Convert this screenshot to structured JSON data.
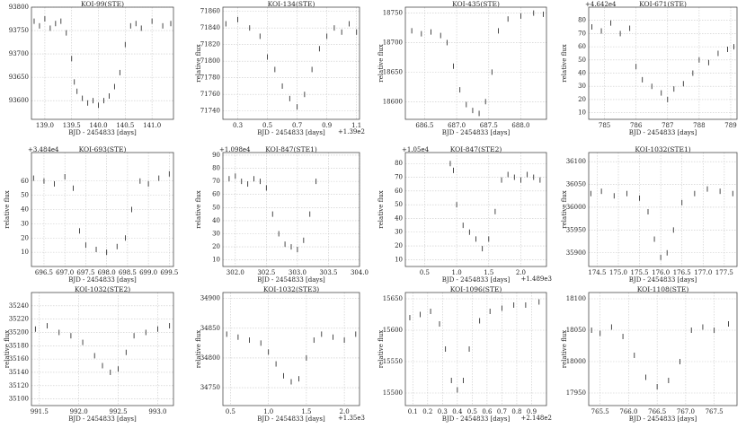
{
  "chart_data": [
    {
      "type": "scatter",
      "title": "KOI-99(STE)",
      "xlabel": "BJD - 2454833 [days]",
      "xlim": [
        138.75,
        141.4
      ],
      "ylim": [
        93560,
        93800
      ],
      "xticks": [
        {
          "value": 139,
          "label": "139.0"
        },
        139.5,
        {
          "value": 140,
          "label": "140.0"
        },
        140.5,
        {
          "value": 141,
          "label": "141.0"
        }
      ],
      "yticks": [
        93600,
        93650,
        93700,
        93750,
        93800
      ],
      "x": [
        138.8,
        138.9,
        139.0,
        139.1,
        139.2,
        139.3,
        139.4,
        139.5,
        139.55,
        139.6,
        139.7,
        139.8,
        139.9,
        140.0,
        140.1,
        140.2,
        140.3,
        140.4,
        140.5,
        140.6,
        140.7,
        140.8,
        141.0,
        141.2,
        141.35
      ],
      "values": [
        93770,
        93760,
        93775,
        93755,
        93765,
        93770,
        93745,
        93690,
        93640,
        93620,
        93605,
        93595,
        93600,
        93590,
        93600,
        93610,
        93630,
        93660,
        93720,
        93760,
        93765,
        93755,
        93770,
        93760,
        93765
      ]
    },
    {
      "type": "scatter",
      "title": "KOI-134(STE)",
      "xlabel": "BJD - 2454833 [days]",
      "ylabel": "relative flux",
      "x_offset": "+1.39e2",
      "xlim": [
        0.2,
        1.12
      ],
      "ylim": [
        71730,
        71865
      ],
      "xticks": [
        0.3,
        0.5,
        0.7,
        0.9,
        1.1
      ],
      "yticks": [
        71740,
        71760,
        71780,
        71800,
        71820,
        71840,
        71860
      ],
      "x": [
        0.22,
        0.3,
        0.38,
        0.45,
        0.5,
        0.55,
        0.6,
        0.65,
        0.7,
        0.75,
        0.8,
        0.85,
        0.9,
        0.95,
        1.0,
        1.05,
        1.1
      ],
      "values": [
        71845,
        71850,
        71840,
        71830,
        71805,
        71790,
        71770,
        71755,
        71745,
        71760,
        71790,
        71815,
        71830,
        71840,
        71835,
        71845,
        71835
      ]
    },
    {
      "type": "scatter",
      "title": "KOI-435(STE)",
      "xlabel": "BJD - 2454833 [days]",
      "ylabel": "relative flux",
      "xlim": [
        686.2,
        688.4
      ],
      "ylim": [
        18570,
        18760
      ],
      "xticks": [
        686.5,
        {
          "value": 687,
          "label": "687.0"
        },
        687.5,
        {
          "value": 688,
          "label": "688.0"
        }
      ],
      "yticks": [
        18600,
        18650,
        18700,
        18750
      ],
      "x": [
        686.3,
        686.45,
        686.6,
        686.75,
        686.85,
        686.95,
        687.05,
        687.15,
        687.25,
        687.35,
        687.45,
        687.55,
        687.65,
        687.8,
        688.0,
        688.2,
        688.35
      ],
      "values": [
        18720,
        18715,
        18718,
        18712,
        18700,
        18660,
        18620,
        18595,
        18585,
        18580,
        18600,
        18650,
        18720,
        18740,
        18745,
        18750,
        18748
      ]
    },
    {
      "type": "scatter",
      "title": "KOI-671(STE)",
      "xlabel": "BJD - 2454833 [days]",
      "ylabel": "relative flux",
      "y_offset": "+4.642e4",
      "xlim": [
        784.5,
        789.2
      ],
      "ylim": [
        5,
        90
      ],
      "xticks": [
        785,
        786,
        787,
        788,
        789
      ],
      "yticks": [
        10,
        20,
        30,
        40,
        50,
        60,
        70,
        80
      ],
      "x": [
        784.6,
        784.9,
        785.2,
        785.5,
        785.8,
        786.0,
        786.2,
        786.5,
        786.8,
        787.0,
        787.2,
        787.5,
        787.8,
        788.0,
        788.3,
        788.6,
        788.9,
        789.1
      ],
      "values": [
        75,
        72,
        78,
        70,
        74,
        45,
        35,
        30,
        25,
        20,
        28,
        32,
        40,
        50,
        48,
        55,
        58,
        60
      ]
    },
    {
      "type": "scatter",
      "title": "KOI-693(STE)",
      "xlabel": "BJD - 2454833 [days]",
      "ylabel": "relative flux",
      "y_offset": "+3.484e4",
      "xlim": [
        696.2,
        699.6
      ],
      "ylim": [
        0,
        80
      ],
      "xticks": [
        696.5,
        {
          "value": 697,
          "label": "697.0"
        },
        697.5,
        {
          "value": 698,
          "label": "698.0"
        },
        698.5,
        {
          "value": 699,
          "label": "699.0"
        },
        699.5
      ],
      "yticks": [
        10,
        20,
        30,
        40,
        50,
        60
      ],
      "x": [
        696.25,
        696.5,
        696.75,
        697.0,
        697.2,
        697.35,
        697.5,
        697.75,
        698.0,
        698.25,
        698.45,
        698.6,
        698.8,
        699.0,
        699.25,
        699.5
      ],
      "values": [
        62,
        60,
        58,
        63,
        55,
        25,
        15,
        12,
        10,
        14,
        20,
        40,
        60,
        58,
        62,
        65
      ]
    },
    {
      "type": "scatter",
      "title": "KOI-847(STE1)",
      "xlabel": "BJD - 2454833 [days]",
      "ylabel": "relative flux",
      "y_offset": "+1.098e4",
      "xlim": [
        301.8,
        304.0
      ],
      "ylim": [
        5,
        92
      ],
      "xticks": [
        {
          "value": 302,
          "label": "302.0"
        },
        302.5,
        {
          "value": 303,
          "label": "303.0"
        },
        303.5,
        {
          "value": 304,
          "label": "304.0"
        }
      ],
      "yticks": [
        10,
        20,
        30,
        40,
        50,
        60,
        70,
        80,
        90
      ],
      "x": [
        301.9,
        302.0,
        302.1,
        302.2,
        302.3,
        302.4,
        302.5,
        302.6,
        302.7,
        302.8,
        302.9,
        303.0,
        303.1,
        303.2,
        303.3
      ],
      "values": [
        72,
        74,
        70,
        68,
        72,
        70,
        65,
        45,
        30,
        22,
        20,
        18,
        25,
        45,
        70
      ]
    },
    {
      "type": "scatter",
      "title": "KOI-847(STE2)",
      "xlabel": "BJD - 2454833 [days]",
      "ylabel": "relative flux",
      "y_offset": "+1.05e4",
      "x_offset": "+1.489e3",
      "xlim": [
        0.2,
        2.4
      ],
      "ylim": [
        5,
        88
      ],
      "xticks": [
        0.5,
        {
          "value": 1,
          "label": "1.0"
        },
        1.5,
        {
          "value": 2,
          "label": "2.0"
        }
      ],
      "yticks": [
        10,
        20,
        30,
        40,
        50,
        60,
        70,
        80
      ],
      "x": [
        0.9,
        0.95,
        1.0,
        1.1,
        1.2,
        1.3,
        1.4,
        1.5,
        1.6,
        1.7,
        1.8,
        1.9,
        2.0,
        2.1,
        2.2,
        2.3
      ],
      "values": [
        80,
        75,
        50,
        35,
        30,
        25,
        18,
        25,
        45,
        68,
        72,
        70,
        68,
        72,
        70,
        68
      ]
    },
    {
      "type": "scatter",
      "title": "KOI-1032(STE1)",
      "xlabel": "BJD - 2454833 [days]",
      "ylabel": "relative flux",
      "xlim": [
        174.3,
        177.8
      ],
      "ylim": [
        35870,
        36120
      ],
      "xticks": [
        174.5,
        {
          "value": 175,
          "label": "175.0"
        },
        175.5,
        {
          "value": 176,
          "label": "176.0"
        },
        176.5,
        {
          "value": 177,
          "label": "177.0"
        },
        177.5
      ],
      "yticks": [
        35900,
        35950,
        36000,
        36050,
        36100
      ],
      "x": [
        174.35,
        174.6,
        174.9,
        175.2,
        175.5,
        175.7,
        175.85,
        176.0,
        176.15,
        176.3,
        176.5,
        176.8,
        177.1,
        177.4,
        177.7
      ],
      "values": [
        36030,
        36035,
        36025,
        36030,
        36020,
        35990,
        35930,
        35890,
        35900,
        35950,
        36010,
        36030,
        36040,
        36035,
        36030
      ]
    },
    {
      "type": "scatter",
      "title": "KOI-1032(STE2)",
      "xlabel": "BJD - 2454833 [days]",
      "ylabel": "relative flux",
      "xlim": [
        991.4,
        993.2
      ],
      "ylim": [
        35090,
        35260
      ],
      "xticks": [
        991.5,
        {
          "value": 992,
          "label": "992.0"
        },
        992.5,
        {
          "value": 993,
          "label": "993.0"
        }
      ],
      "yticks": [
        35100,
        35120,
        35140,
        35160,
        35180,
        35200,
        35220,
        35240
      ],
      "x": [
        991.45,
        991.6,
        991.75,
        991.9,
        992.05,
        992.2,
        992.3,
        992.4,
        992.5,
        992.6,
        992.7,
        992.85,
        993.0,
        993.15
      ],
      "values": [
        35205,
        35210,
        35200,
        35195,
        35185,
        35165,
        35150,
        35140,
        35145,
        35170,
        35195,
        35200,
        35205,
        35210
      ]
    },
    {
      "type": "scatter",
      "title": "KOI-1032(STE3)",
      "xlabel": "BJD - 2454833 [days]",
      "ylabel": "relative flux",
      "x_offset": "+1.35e3",
      "xlim": [
        0.4,
        2.2
      ],
      "ylim": [
        34720,
        34910
      ],
      "xticks": [
        0.5,
        {
          "value": 1,
          "label": "1.0"
        },
        1.5,
        {
          "value": 2,
          "label": "2.0"
        }
      ],
      "yticks": [
        34750,
        34800,
        34850,
        34900
      ],
      "x": [
        0.45,
        0.6,
        0.75,
        0.9,
        1.0,
        1.1,
        1.2,
        1.3,
        1.4,
        1.5,
        1.6,
        1.7,
        1.85,
        2.0,
        2.15
      ],
      "values": [
        34840,
        34835,
        34830,
        34825,
        34810,
        34790,
        34770,
        34760,
        34765,
        34800,
        34830,
        34840,
        34835,
        34830,
        34840
      ]
    },
    {
      "type": "scatter",
      "title": "KOI-1096(STE)",
      "xlabel": "BJD - 2454833 [days]",
      "ylabel": "relative flux",
      "x_offset": "+2.148e2",
      "xlim": [
        0.05,
        1.0
      ],
      "ylim": [
        15480,
        15660
      ],
      "xticks": [
        0.1,
        0.2,
        0.3,
        0.4,
        0.5,
        0.6,
        0.7,
        0.8,
        0.9
      ],
      "yticks": [
        15500,
        15550,
        15600,
        15650
      ],
      "x": [
        0.08,
        0.15,
        0.22,
        0.28,
        0.32,
        0.36,
        0.4,
        0.44,
        0.48,
        0.55,
        0.62,
        0.7,
        0.78,
        0.86,
        0.95
      ],
      "values": [
        15620,
        15625,
        15630,
        15610,
        15570,
        15520,
        15505,
        15520,
        15570,
        15615,
        15630,
        15635,
        15640,
        15640,
        15645
      ]
    },
    {
      "type": "scatter",
      "title": "KOI-1108(STE)",
      "xlabel": "BJD - 2454833 [days]",
      "ylabel": "relative flux",
      "xlim": [
        765.3,
        767.9
      ],
      "ylim": [
        17930,
        18110
      ],
      "xticks": [
        765.5,
        {
          "value": 766,
          "label": "766.0"
        },
        766.5,
        {
          "value": 767,
          "label": "767.0"
        },
        767.5
      ],
      "yticks": [
        17950,
        18000,
        18050,
        18100
      ],
      "x": [
        765.35,
        765.5,
        765.7,
        765.9,
        766.1,
        766.3,
        766.5,
        766.7,
        766.9,
        767.1,
        767.3,
        767.5,
        767.75
      ],
      "values": [
        18050,
        18045,
        18055,
        18040,
        18010,
        17975,
        17960,
        17970,
        18000,
        18050,
        18055,
        18050,
        18060
      ]
    }
  ]
}
